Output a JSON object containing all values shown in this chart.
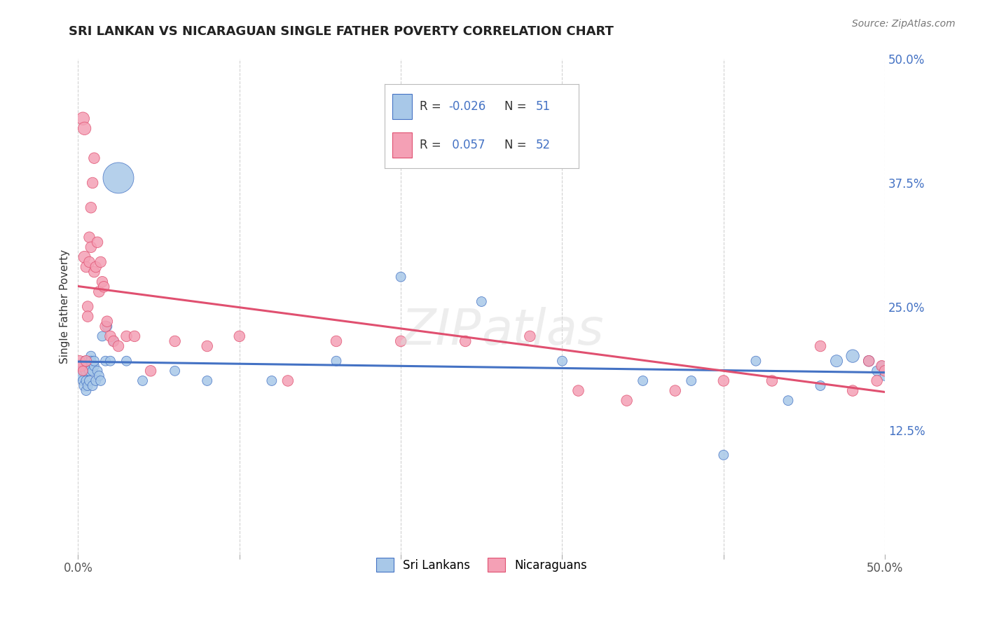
{
  "title": "SRI LANKAN VS NICARAGUAN SINGLE FATHER POVERTY CORRELATION CHART",
  "source": "Source: ZipAtlas.com",
  "ylabel": "Single Father Poverty",
  "legend_label1": "Sri Lankans",
  "legend_label2": "Nicaraguans",
  "r1": -0.026,
  "n1": 51,
  "r2": 0.057,
  "n2": 52,
  "color1": "#a8c8e8",
  "color2": "#f4a0b5",
  "trend1_color": "#4472c4",
  "trend2_color": "#e05070",
  "background": "#ffffff",
  "grid_color": "#cccccc",
  "sri_lankans_x": [
    0.001,
    0.002,
    0.002,
    0.003,
    0.003,
    0.004,
    0.004,
    0.005,
    0.005,
    0.005,
    0.006,
    0.006,
    0.007,
    0.007,
    0.008,
    0.008,
    0.009,
    0.009,
    0.01,
    0.01,
    0.011,
    0.012,
    0.013,
    0.014,
    0.015,
    0.017,
    0.018,
    0.02,
    0.022,
    0.025,
    0.03,
    0.04,
    0.06,
    0.08,
    0.12,
    0.16,
    0.2,
    0.25,
    0.3,
    0.35,
    0.38,
    0.4,
    0.42,
    0.44,
    0.46,
    0.47,
    0.48,
    0.49,
    0.495,
    0.498,
    0.5
  ],
  "sri_lankans_y": [
    0.19,
    0.185,
    0.18,
    0.19,
    0.175,
    0.17,
    0.195,
    0.185,
    0.175,
    0.165,
    0.19,
    0.17,
    0.185,
    0.175,
    0.2,
    0.195,
    0.185,
    0.17,
    0.19,
    0.195,
    0.175,
    0.185,
    0.18,
    0.175,
    0.22,
    0.195,
    0.23,
    0.195,
    0.215,
    0.38,
    0.195,
    0.175,
    0.185,
    0.175,
    0.175,
    0.195,
    0.28,
    0.255,
    0.195,
    0.175,
    0.175,
    0.1,
    0.195,
    0.155,
    0.17,
    0.195,
    0.2,
    0.195,
    0.185,
    0.19,
    0.18
  ],
  "sri_lankans_size": [
    30,
    25,
    25,
    20,
    20,
    25,
    20,
    25,
    20,
    20,
    20,
    20,
    20,
    20,
    20,
    20,
    20,
    20,
    20,
    20,
    20,
    20,
    20,
    20,
    20,
    20,
    20,
    20,
    20,
    200,
    20,
    20,
    20,
    20,
    20,
    20,
    20,
    20,
    20,
    20,
    20,
    20,
    20,
    20,
    20,
    30,
    35,
    25,
    20,
    20,
    20
  ],
  "nicaraguans_x": [
    0.001,
    0.002,
    0.003,
    0.003,
    0.004,
    0.004,
    0.005,
    0.005,
    0.006,
    0.006,
    0.007,
    0.007,
    0.008,
    0.008,
    0.009,
    0.01,
    0.01,
    0.011,
    0.012,
    0.013,
    0.014,
    0.015,
    0.016,
    0.017,
    0.018,
    0.02,
    0.022,
    0.025,
    0.03,
    0.035,
    0.045,
    0.06,
    0.08,
    0.1,
    0.13,
    0.16,
    0.2,
    0.24,
    0.28,
    0.31,
    0.34,
    0.37,
    0.4,
    0.43,
    0.46,
    0.48,
    0.49,
    0.495,
    0.498,
    0.5,
    0.505,
    0.51
  ],
  "nicaraguans_y": [
    0.195,
    0.19,
    0.185,
    0.44,
    0.43,
    0.3,
    0.29,
    0.195,
    0.25,
    0.24,
    0.32,
    0.295,
    0.35,
    0.31,
    0.375,
    0.4,
    0.285,
    0.29,
    0.315,
    0.265,
    0.295,
    0.275,
    0.27,
    0.23,
    0.235,
    0.22,
    0.215,
    0.21,
    0.22,
    0.22,
    0.185,
    0.215,
    0.21,
    0.22,
    0.175,
    0.215,
    0.215,
    0.215,
    0.22,
    0.165,
    0.155,
    0.165,
    0.175,
    0.175,
    0.21,
    0.165,
    0.195,
    0.175,
    0.19,
    0.185,
    0.175,
    0.17
  ],
  "nicaraguans_size": [
    25,
    25,
    20,
    35,
    35,
    30,
    25,
    25,
    25,
    25,
    25,
    25,
    25,
    25,
    25,
    25,
    25,
    25,
    25,
    25,
    25,
    25,
    25,
    25,
    25,
    25,
    25,
    25,
    25,
    25,
    25,
    25,
    25,
    25,
    25,
    25,
    25,
    25,
    25,
    25,
    25,
    25,
    25,
    25,
    25,
    25,
    25,
    25,
    25,
    25,
    25,
    25
  ],
  "xlim": [
    0.0,
    0.5
  ],
  "ylim": [
    0.0,
    0.5
  ],
  "right_ytick_vals": [
    0.125,
    0.25,
    0.375,
    0.5
  ],
  "right_ytick_labels": [
    "12.5%",
    "25.0%",
    "37.5%",
    "50.0%"
  ]
}
